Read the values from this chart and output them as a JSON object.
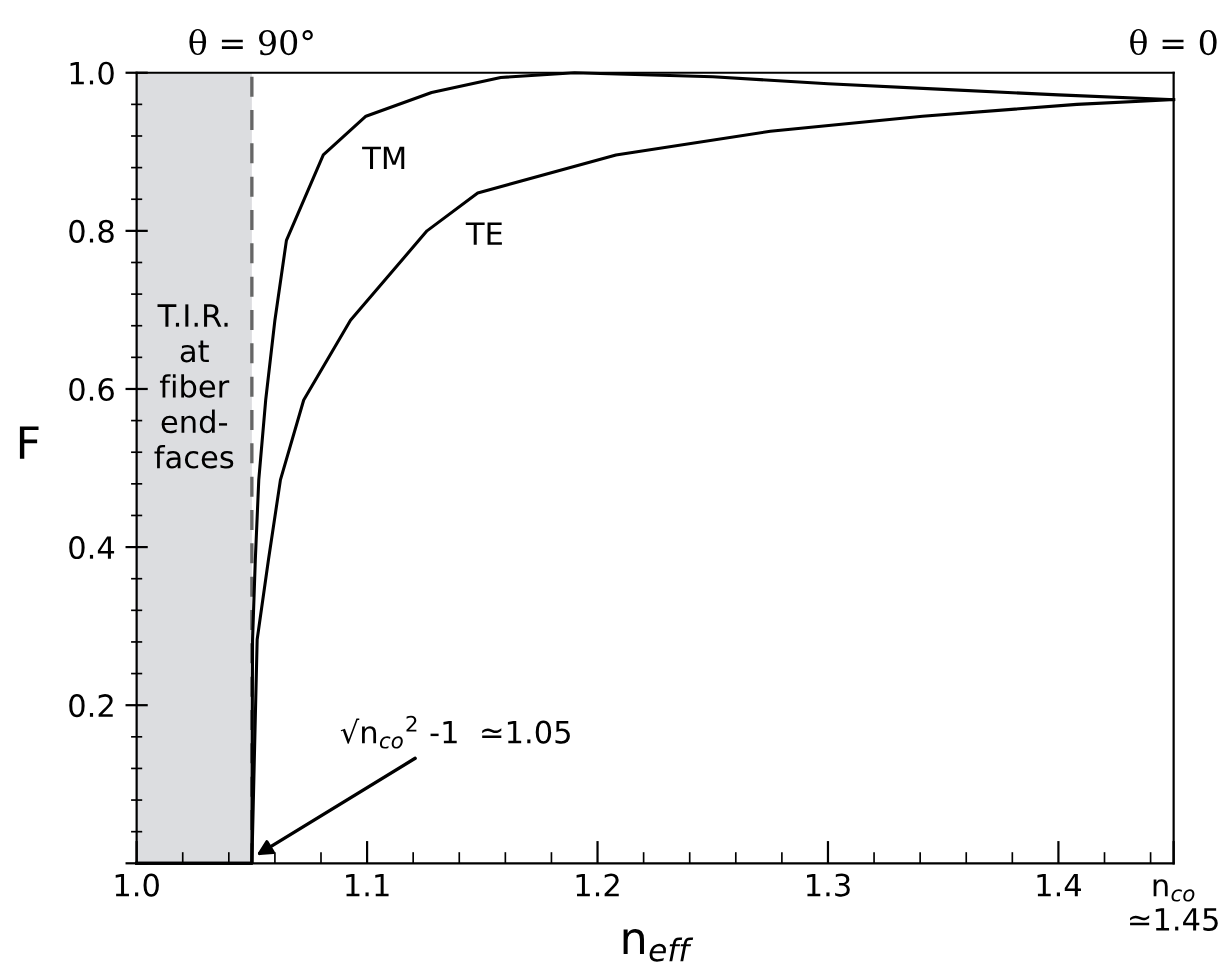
{
  "chart_data": {
    "type": "line",
    "xlabel": "n$_{eff}$",
    "ylabel": "F",
    "xlim": [
      1.0,
      1.45
    ],
    "ylim": [
      0,
      1.0
    ],
    "xticks": [
      {
        "value": 1.0,
        "label": "1.0"
      },
      1.1,
      1.2,
      1.3,
      1.4,
      {
        "value": 1.45,
        "label": "n$_{co}$\n≃1.45"
      }
    ],
    "yticks": [
      {
        "value": 0,
        "label": null
      },
      0.2,
      0.4,
      0.6,
      0.8,
      {
        "value": 1.0,
        "label": "1.0"
      }
    ],
    "grid": false,
    "legend": false,
    "marker": "none",
    "line_style": "solid",
    "series": [
      {
        "name": "TM",
        "color": "#000000",
        "x": [
          1.0,
          1.05,
          1.0503,
          1.0515,
          1.053,
          1.056,
          1.06,
          1.065,
          1.081,
          1.0995,
          1.128,
          1.158,
          1.19,
          1.25,
          1.3,
          1.35,
          1.4,
          1.45
        ],
        "values": [
          0,
          0,
          0.283,
          0.384,
          0.485,
          0.586,
          0.687,
          0.788,
          0.896,
          0.945,
          0.975,
          0.994,
          1.0,
          0.995,
          0.986,
          0.979,
          0.972,
          0.966
        ]
      },
      {
        "name": "TE",
        "color": "#000000",
        "x": [
          1.0,
          1.05,
          1.0523,
          1.0572,
          1.0624,
          1.0725,
          1.0928,
          1.126,
          1.148,
          1.208,
          1.275,
          1.341,
          1.408,
          1.45
        ],
        "values": [
          0,
          0,
          0.283,
          0.384,
          0.485,
          0.586,
          0.687,
          0.8,
          0.848,
          0.896,
          0.926,
          0.945,
          0.96,
          0.966
        ]
      }
    ],
    "bands": [
      {
        "axis": "x",
        "from": 1.0,
        "to": 1.05,
        "label": "T.I.R.\nat\nfiber\nend-\nfaces",
        "color": "#dcdde0"
      }
    ],
    "ref_lines": [
      {
        "axis": "x",
        "value": 1.05,
        "color": "#666666",
        "line_style": "dashed"
      }
    ],
    "annotations": [
      "θ = 90°",
      "θ = 0",
      {
        "text": "√n$_{co}$$^{2}$ -1  ≃1.05",
        "x": 1.052,
        "y": 0.01
      }
    ]
  }
}
